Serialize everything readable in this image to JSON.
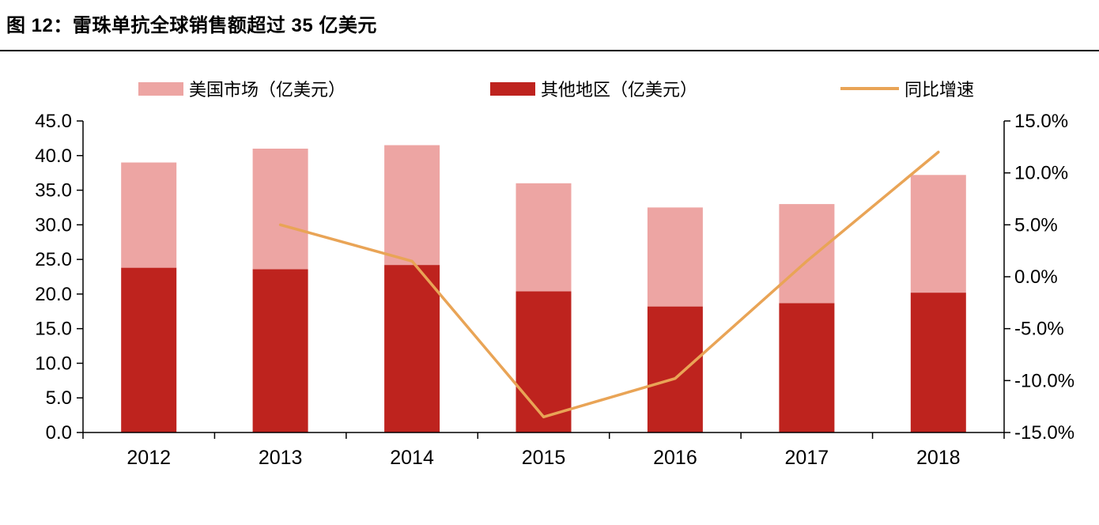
{
  "page": {
    "title": "图 12：雷珠单抗全球销售额超过 35 亿美元"
  },
  "chart_data": {
    "type": "bar",
    "subtype": "stacked-bar-with-line-combo",
    "title": "图 12：雷珠单抗全球销售额超过 35 亿美元",
    "categories": [
      "2012",
      "2013",
      "2014",
      "2015",
      "2016",
      "2017",
      "2018"
    ],
    "series": [
      {
        "name": "美国市场（亿美元）",
        "type": "bar",
        "axis": "left",
        "color": "#EDA5A3",
        "values": [
          15.2,
          17.4,
          17.3,
          15.6,
          14.3,
          14.3,
          17.0
        ]
      },
      {
        "name": "其他地区（亿美元）",
        "type": "bar",
        "axis": "left",
        "color": "#BE231E",
        "values": [
          23.8,
          23.6,
          24.2,
          20.4,
          18.2,
          18.7,
          20.2
        ]
      },
      {
        "name": "同比增速",
        "type": "line",
        "axis": "right",
        "color": "#E9A456",
        "values": [
          null,
          5.0,
          1.5,
          -13.5,
          -9.8,
          1.5,
          12.0
        ]
      }
    ],
    "stack_totals": [
      39.0,
      41.0,
      41.5,
      36.0,
      32.5,
      33.0,
      37.2
    ],
    "stack_bottom_series": "其他地区（亿美元）",
    "left_axis": {
      "min": 0,
      "max": 45,
      "step": 5,
      "tick_labels": [
        "0.0",
        "5.0",
        "10.0",
        "15.0",
        "20.0",
        "25.0",
        "30.0",
        "35.0",
        "40.0",
        "45.0"
      ]
    },
    "right_axis": {
      "min": -15,
      "max": 15,
      "step": 5,
      "tick_labels": [
        "-15.0%",
        "-10.0%",
        "-5.0%",
        "0.0%",
        "5.0%",
        "10.0%",
        "15.0%"
      ]
    },
    "legend_position": "top",
    "grid": false
  }
}
